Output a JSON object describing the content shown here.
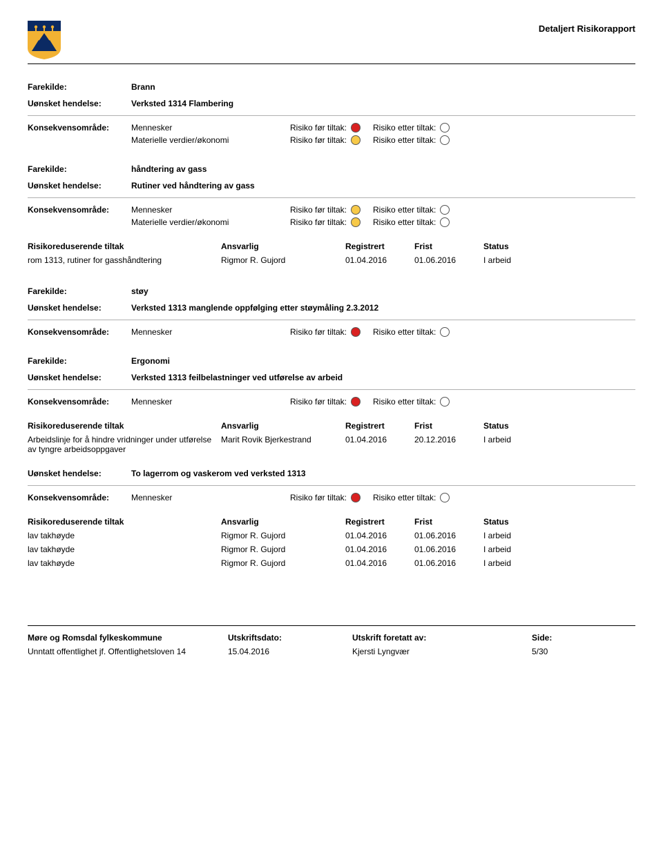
{
  "header": {
    "title": "Detaljert Risikorapport",
    "logo_colors": {
      "bg": "#f2b233",
      "top": "#0b2a63",
      "shape": "#0b2a63"
    }
  },
  "labels": {
    "farekilde": "Farekilde:",
    "uonsket": "Uønsket hendelse:",
    "konsekvens": "Konsekvensområde:",
    "risk_before": "Risiko før tiltak:",
    "risk_after": "Risiko etter tiltak:",
    "tiltak": "Risikoreduserende tiltak",
    "ansvarlig": "Ansvarlig",
    "registrert": "Registrert",
    "frist": "Frist",
    "status": "Status"
  },
  "colors": {
    "red": "#d92121",
    "yellow": "#f7c948",
    "empty": "#ffffff",
    "circle_border": "#555555"
  },
  "sections": [
    {
      "farekilde": "Brann",
      "uonsket": "Verksted 1314 Flambering",
      "konsekvens": [
        {
          "label_key": true,
          "value": "Mennesker",
          "before": "red",
          "after": "empty"
        },
        {
          "label_key": false,
          "value": "Materielle verdier/økonomi",
          "before": "yellow",
          "after": "empty"
        }
      ],
      "table": null
    },
    {
      "farekilde": "håndtering av gass",
      "uonsket": "Rutiner ved håndtering av gass",
      "konsekvens": [
        {
          "label_key": true,
          "value": "Mennesker",
          "before": "yellow",
          "after": "empty"
        },
        {
          "label_key": false,
          "value": "Materielle verdier/økonomi",
          "before": "yellow",
          "after": "empty"
        }
      ],
      "table": {
        "rows": [
          {
            "tiltak": "rom 1313, rutiner for gasshåndtering",
            "ansvarlig": "Rigmor R. Gujord",
            "reg": "01.04.2016",
            "frist": "01.06.2016",
            "status": "I arbeid"
          }
        ]
      }
    },
    {
      "farekilde": "støy",
      "uonsket": "Verksted 1313 manglende oppfølging etter støymåling 2.3.2012",
      "konsekvens": [
        {
          "label_key": true,
          "value": "Mennesker",
          "before": "red",
          "after": "empty"
        }
      ],
      "table": null
    },
    {
      "farekilde": "Ergonomi",
      "uonsket": "Verksted 1313 feilbelastninger ved utførelse av arbeid",
      "konsekvens": [
        {
          "label_key": true,
          "value": "Mennesker",
          "before": "red",
          "after": "empty"
        }
      ],
      "table": {
        "rows": [
          {
            "tiltak": "Arbeidslinje for å hindre vridninger under utførelse av tyngre arbeidsoppgaver",
            "ansvarlig": "Marit Rovik Bjerkestrand",
            "reg": "01.04.2016",
            "frist": "20.12.2016",
            "status": "I arbeid"
          }
        ]
      },
      "sub": [
        {
          "uonsket": "To lagerrom og vaskerom ved verksted 1313",
          "konsekvens": [
            {
              "label_key": true,
              "value": "Mennesker",
              "before": "red",
              "after": "empty"
            }
          ],
          "table": {
            "rows": [
              {
                "tiltak": "lav takhøyde",
                "ansvarlig": "Rigmor R. Gujord",
                "reg": "01.04.2016",
                "frist": "01.06.2016",
                "status": "I arbeid"
              },
              {
                "tiltak": "lav takhøyde",
                "ansvarlig": "Rigmor R. Gujord",
                "reg": "01.04.2016",
                "frist": "01.06.2016",
                "status": "I arbeid"
              },
              {
                "tiltak": "lav takhøyde",
                "ansvarlig": "Rigmor R. Gujord",
                "reg": "01.04.2016",
                "frist": "01.06.2016",
                "status": "I arbeid"
              }
            ]
          }
        }
      ]
    }
  ],
  "footer": {
    "org": "Møre og Romsdal fylkeskommune",
    "utskriftsdato_label": "Utskriftsdato:",
    "utskrift_av_label": "Utskrift foretatt av:",
    "side_label": "Side:",
    "confidential": "Unntatt offentlighet jf. Offentlighetsloven 14",
    "date": "15.04.2016",
    "by": "Kjersti Lyngvær",
    "page": "5/30"
  }
}
